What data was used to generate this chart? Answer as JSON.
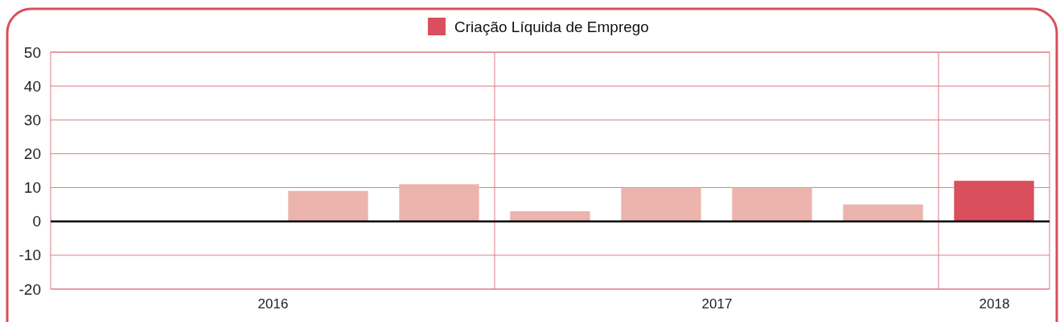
{
  "chart_data": {
    "type": "bar",
    "x": [
      2016.625,
      2016.875,
      2017.125,
      2017.375,
      2017.625,
      2017.875,
      2018.125
    ],
    "xlim": [
      2016,
      2018.25
    ],
    "xticks": [
      {
        "value": 2016.5,
        "label": "2016"
      },
      {
        "value": 2017.5,
        "label": "2017"
      },
      {
        "value": 2018.125,
        "label": "2018"
      }
    ],
    "ylim": [
      -20,
      50
    ],
    "yticks": [
      -20,
      -10,
      0,
      10,
      20,
      30,
      40,
      50
    ],
    "series": [
      {
        "name": "Criação Líquida de Emprego",
        "color": "#d94f5c",
        "values": [
          9,
          11,
          3,
          10,
          10,
          5,
          12
        ],
        "colors": [
          "#ecb4ad",
          "#ecb4ad",
          "#ecb4ad",
          "#ecb4ad",
          "#ecb4ad",
          "#ecb4ad",
          "#d94f5c"
        ]
      }
    ],
    "ref_lines": [
      {
        "axis": "x",
        "value": 2017,
        "label": null,
        "color": "#e07a86"
      },
      {
        "axis": "x",
        "value": 2018,
        "label": null,
        "color": "#e07a86"
      },
      {
        "axis": "y",
        "value": 0,
        "label": null,
        "color": "#000000"
      }
    ],
    "grid": "y",
    "legend": "top"
  }
}
